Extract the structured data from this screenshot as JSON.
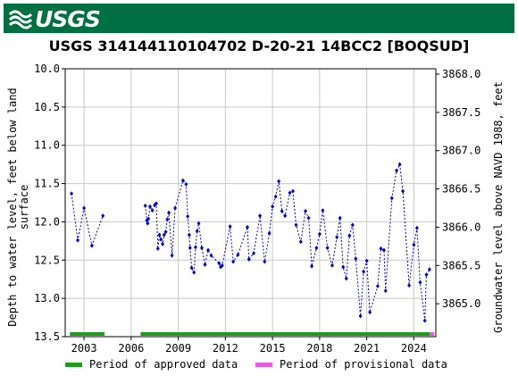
{
  "header": {
    "logo_text": "USGS",
    "logo_icon": "usgs-wave-icon",
    "brand_color": "#006f41"
  },
  "chart_data": {
    "type": "scatter",
    "title": "USGS 314144110104702 D-20-21 14BCC2 [BOQSUD]",
    "ylabel_left_line1": "Depth to water level, feet below land",
    "ylabel_left_line2": "surface",
    "ylabel_right": "Groundwater level above NAVD 1988, feet",
    "ylim_left": [
      13.5,
      10.0
    ],
    "ylim_right": [
      3864.57,
      3868.07
    ],
    "yticks_left": [
      "10.0",
      "10.5",
      "11.0",
      "11.5",
      "12.0",
      "12.5",
      "13.0",
      "13.5"
    ],
    "yticks_left_values": [
      10.0,
      10.5,
      11.0,
      11.5,
      12.0,
      12.5,
      13.0,
      13.5
    ],
    "yticks_right": [
      "3868.0",
      "3867.5",
      "3867.0",
      "3866.5",
      "3866.0",
      "3865.5",
      "3865.0"
    ],
    "yticks_right_values": [
      3868.0,
      3867.5,
      3867.0,
      3866.5,
      3866.0,
      3865.5,
      3865.0
    ],
    "xlim": [
      2001.8,
      2025.4
    ],
    "xticks": [
      "2003",
      "2006",
      "2009",
      "2012",
      "2015",
      "2018",
      "2021",
      "2024"
    ],
    "xticks_values": [
      2003,
      2006,
      2009,
      2012,
      2015,
      2018,
      2021,
      2024
    ],
    "grid": true,
    "series_color": "#0000cc",
    "segments": [
      [
        [
          2002.2,
          11.63
        ],
        [
          2002.6,
          12.24
        ],
        [
          2003.0,
          11.82
        ],
        [
          2003.5,
          12.31
        ],
        [
          2004.2,
          11.92
        ]
      ],
      [
        [
          2006.9,
          11.79
        ],
        [
          2007.0,
          11.98
        ],
        [
          2007.05,
          12.02
        ],
        [
          2007.1,
          11.96
        ],
        [
          2007.2,
          11.8
        ],
        [
          2007.35,
          11.85
        ],
        [
          2007.5,
          11.78
        ],
        [
          2007.6,
          11.76
        ],
        [
          2007.7,
          12.35
        ],
        [
          2007.8,
          12.17
        ],
        [
          2007.9,
          12.23
        ],
        [
          2008.0,
          12.29
        ],
        [
          2008.1,
          12.17
        ],
        [
          2008.2,
          12.13
        ],
        [
          2008.3,
          11.97
        ],
        [
          2008.4,
          11.88
        ],
        [
          2008.6,
          12.44
        ],
        [
          2008.8,
          11.82
        ],
        [
          2009.3,
          11.46
        ],
        [
          2009.5,
          11.51
        ],
        [
          2009.6,
          11.93
        ],
        [
          2009.7,
          12.17
        ],
        [
          2009.75,
          12.34
        ],
        [
          2009.85,
          12.6
        ],
        [
          2010.0,
          12.66
        ],
        [
          2010.1,
          12.33
        ],
        [
          2010.2,
          12.12
        ],
        [
          2010.3,
          12.02
        ],
        [
          2010.5,
          12.34
        ],
        [
          2010.7,
          12.56
        ],
        [
          2010.9,
          12.37
        ],
        [
          2011.1,
          12.44
        ],
        [
          2011.6,
          12.54
        ],
        [
          2011.7,
          12.59
        ],
        [
          2011.8,
          12.57
        ],
        [
          2012.3,
          12.06
        ],
        [
          2012.5,
          12.52
        ],
        [
          2012.8,
          12.43
        ],
        [
          2013.4,
          12.07
        ],
        [
          2013.5,
          12.49
        ],
        [
          2013.8,
          12.41
        ],
        [
          2014.2,
          11.92
        ],
        [
          2014.5,
          12.52
        ],
        [
          2014.8,
          12.15
        ],
        [
          2015.0,
          11.8
        ],
        [
          2015.2,
          11.67
        ],
        [
          2015.4,
          11.47
        ],
        [
          2015.6,
          11.86
        ],
        [
          2015.8,
          11.92
        ],
        [
          2016.1,
          11.62
        ],
        [
          2016.3,
          11.6
        ],
        [
          2016.5,
          12.04
        ],
        [
          2016.8,
          12.26
        ],
        [
          2017.1,
          11.86
        ],
        [
          2017.3,
          11.95
        ],
        [
          2017.5,
          12.58
        ],
        [
          2017.8,
          12.34
        ],
        [
          2018.0,
          12.16
        ],
        [
          2018.2,
          11.85
        ],
        [
          2018.5,
          12.34
        ],
        [
          2018.8,
          12.57
        ],
        [
          2019.1,
          12.2
        ],
        [
          2019.3,
          11.95
        ],
        [
          2019.5,
          12.59
        ],
        [
          2019.7,
          12.74
        ],
        [
          2019.9,
          12.18
        ],
        [
          2020.1,
          12.04
        ],
        [
          2020.3,
          12.48
        ],
        [
          2020.6,
          13.23
        ],
        [
          2020.8,
          12.65
        ],
        [
          2021.0,
          12.51
        ],
        [
          2021.2,
          13.18
        ],
        [
          2021.7,
          12.84
        ],
        [
          2021.9,
          12.35
        ],
        [
          2022.1,
          12.37
        ],
        [
          2022.2,
          12.9
        ],
        [
          2022.6,
          11.69
        ],
        [
          2022.9,
          11.33
        ],
        [
          2023.1,
          11.25
        ],
        [
          2023.3,
          11.6
        ],
        [
          2023.7,
          12.83
        ],
        [
          2024.0,
          12.3
        ],
        [
          2024.2,
          12.08
        ],
        [
          2024.4,
          12.79
        ],
        [
          2024.7,
          13.29
        ],
        [
          2024.8,
          12.69
        ],
        [
          2025.0,
          12.62
        ]
      ]
    ],
    "approved_periods": [
      [
        2002.1,
        2004.3
      ],
      [
        2006.6,
        2025.0
      ]
    ],
    "provisional_periods": [
      [
        2025.0,
        2025.3
      ]
    ],
    "approved_color": "#1e9c1e",
    "provisional_color": "#e65be6",
    "legend": {
      "approved_label": "Period of approved data",
      "provisional_label": "Period of provisional data"
    }
  }
}
